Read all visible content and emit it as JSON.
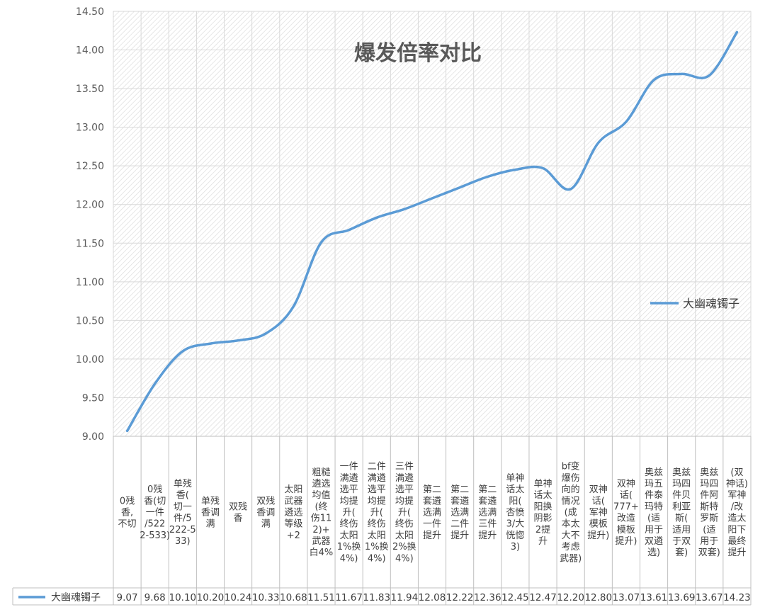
{
  "chart_data": {
    "type": "line",
    "title": "爆发倍率对比",
    "categories": [
      "0残香,不切",
      "0残香(切一件/5222-533)",
      "单残香(切一件/5222-533)",
      "单残香调满",
      "双残香",
      "双残香调满",
      "太阳武器遴选等级+2",
      "粗糙遴选均值(终伤112)+武器白4%",
      "一件满遴选平均提升(终伤太阳1%换4%)",
      "二件满遴选平均提升(终伤太阳1%换4%)",
      "三件满遴选平均提升(终伤太阳2%换4%)",
      "第二套遴选满一件提升",
      "第二套遴选满二件提升",
      "第二套遴选满三件提升",
      "单神话太阳(杏愤3/大恍惚3)",
      "单神话太阳换阴影2提升",
      "bf变爆伤向的情况(成本太大不考虑武器)",
      "双神话(军神模板提升)",
      "双神话(777+改造模板提升)",
      "奥兹玛五件泰玛特(适用于双遴选)",
      "奥兹玛四件贝利亚斯(适用于双套)",
      "奥兹玛四件阿斯特罗斯(适用于双套)",
      "(双神话)军神/改造太阳下最终提升"
    ],
    "category_lines": [
      [
        "0残",
        "香,",
        "不切"
      ],
      [
        "0残",
        "香(切",
        "一件",
        "/522",
        "2-533)"
      ],
      [
        "单残",
        "香(",
        "切一",
        "件/5",
        "222-5",
        "33)"
      ],
      [
        "单残",
        "香调",
        "满"
      ],
      [
        "双残",
        "香"
      ],
      [
        "双残",
        "香调",
        "满"
      ],
      [
        "太阳",
        "武器",
        "遴选",
        "等级",
        "+2"
      ],
      [
        "粗糙",
        "遴选",
        "均值",
        "(终",
        "伤11",
        "2)+",
        "武器",
        "白4%"
      ],
      [
        "一件",
        "满遴",
        "选平",
        "均提",
        "升(",
        "终伤",
        "太阳",
        "1%换",
        "4%)"
      ],
      [
        "二件",
        "满遴",
        "选平",
        "均提",
        "升(",
        "终伤",
        "太阳",
        "1%换",
        "4%)"
      ],
      [
        "三件",
        "满遴",
        "选平",
        "均提",
        "升(",
        "终伤",
        "太阳",
        "2%换",
        "4%)"
      ],
      [
        "第二",
        "套遴",
        "选满",
        "一件",
        "提升"
      ],
      [
        "第二",
        "套遴",
        "选满",
        "二件",
        "提升"
      ],
      [
        "第二",
        "套遴",
        "选满",
        "三件",
        "提升"
      ],
      [
        "单神",
        "话太",
        "阳(",
        "杏愤",
        "3/大",
        "恍惚",
        "3)"
      ],
      [
        "单神",
        "话太",
        "阳换",
        "阴影",
        "2提",
        "升"
      ],
      [
        "bf变",
        "爆伤",
        "向的",
        "情况",
        "(成",
        "本太",
        "大不",
        "考虑",
        "武器)"
      ],
      [
        "双神",
        "话(",
        "军神",
        "模板",
        "提升)"
      ],
      [
        "双神",
        "话(",
        "777+",
        "改造",
        "模板",
        "提升)"
      ],
      [
        "奥兹",
        "玛五",
        "件泰",
        "玛特",
        "(适",
        "用于",
        "双遴",
        "选)"
      ],
      [
        "奥兹",
        "玛四",
        "件贝",
        "利亚",
        "斯(",
        "适用",
        "于双",
        "套)"
      ],
      [
        "奥兹",
        "玛四",
        "件阿",
        "斯特",
        "罗斯",
        "(适",
        "用于",
        "双套)"
      ],
      [
        "(双",
        "神话)",
        "军神",
        "/改",
        "造太",
        "阳下",
        "最终",
        "提升"
      ]
    ],
    "series": [
      {
        "name": "大幽魂镯子",
        "color": "#5b9bd5",
        "values": [
          9.07,
          9.68,
          10.1,
          10.2,
          10.24,
          10.33,
          10.68,
          11.51,
          11.67,
          11.83,
          11.94,
          12.08,
          12.22,
          12.36,
          12.45,
          12.47,
          12.2,
          12.8,
          13.07,
          13.61,
          13.69,
          13.67,
          14.23
        ]
      }
    ],
    "value_labels": [
      "9.07",
      "9.68",
      "10.10",
      "10.20",
      "10.24",
      "10.33",
      "10.68",
      "11.51",
      "11.67",
      "11.83",
      "11.94",
      "12.08",
      "12.22",
      "12.36",
      "12.45",
      "12.47",
      "12.20",
      "12.80",
      "13.07",
      "13.61",
      "13.69",
      "13.67",
      "14.23"
    ],
    "ylim": [
      9.0,
      14.5
    ],
    "y_ticks": [
      "9.00",
      "9.50",
      "10.00",
      "10.50",
      "11.00",
      "11.50",
      "12.00",
      "12.50",
      "13.00",
      "13.50",
      "14.00",
      "14.50"
    ],
    "grid": true,
    "legend_position": "right",
    "data_table": true
  }
}
